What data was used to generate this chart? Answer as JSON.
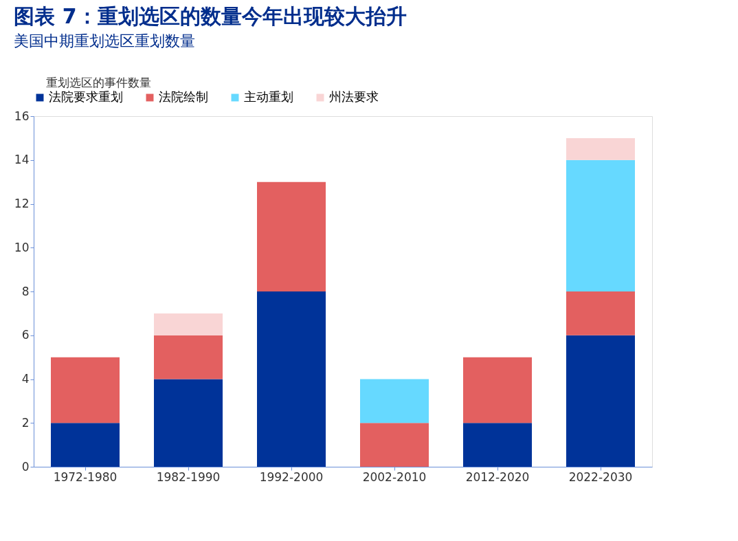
{
  "chart_data": {
    "type": "bar",
    "title": "图表 7：重划选区的数量今年出现较大抬升",
    "subtitle": "美国中期重划选区重划数量",
    "ylabel": "重划选区的事件数量",
    "categories": [
      "1972-1980",
      "1982-1990",
      "1992-2000",
      "2002-2010",
      "2012-2020",
      "2022-2030"
    ],
    "stacked": true,
    "series": [
      {
        "name": "法院要求重划",
        "color": "#003399",
        "values": [
          2,
          4,
          8,
          0,
          2,
          6
        ]
      },
      {
        "name": "法院绘制",
        "color": "#e36060",
        "values": [
          3,
          2,
          5,
          2,
          3,
          2
        ]
      },
      {
        "name": "主动重划",
        "color": "#66d9ff",
        "values": [
          0,
          0,
          0,
          2,
          0,
          6
        ]
      },
      {
        "name": "州法要求",
        "color": "#f9d5d5",
        "values": [
          0,
          1,
          0,
          0,
          0,
          1
        ]
      }
    ],
    "ylim": [
      0,
      16
    ],
    "yticks": [
      0,
      2,
      4,
      6,
      8,
      10,
      12,
      14,
      16
    ],
    "grid": false,
    "legend": "top"
  }
}
